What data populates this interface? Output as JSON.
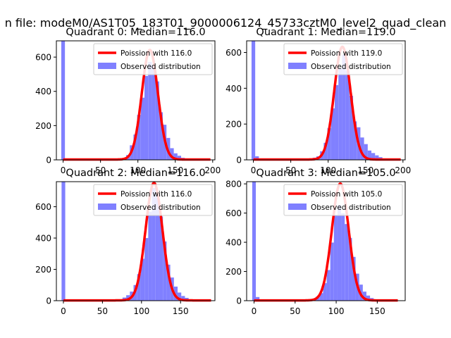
{
  "figure": {
    "suptitle": "n file: modeM0/AS1T05_183T01_9000006124_45733cztM0_level2_quad_clean"
  },
  "chart_data": [
    {
      "type": "bar",
      "title": "Quadrant 0: Median=116.0",
      "xlim": [
        -9,
        203
      ],
      "ylim": [
        0,
        695
      ],
      "xticks": [
        0,
        50,
        100,
        150,
        200
      ],
      "yticks": [
        0,
        200,
        400,
        600
      ],
      "grid": false,
      "legend_position": "top-right",
      "median": 116,
      "series": [
        {
          "name": "Observed distribution",
          "kind": "histogram",
          "color": "#8080ff",
          "bin_width": 4.9,
          "zero_bin": 695,
          "bins": [
            [
              79.4,
              10
            ],
            [
              84.3,
              28
            ],
            [
              89.2,
              85
            ],
            [
              94.1,
              148
            ],
            [
              99.0,
              263
            ],
            [
              103.9,
              363
            ],
            [
              108.8,
              490
            ],
            [
              113.7,
              572
            ],
            [
              118.6,
              555
            ],
            [
              123.5,
              458
            ],
            [
              128.4,
              278
            ],
            [
              133.3,
              205
            ],
            [
              138.2,
              128
            ],
            [
              143.1,
              68
            ],
            [
              148.0,
              38
            ],
            [
              152.9,
              24
            ],
            [
              157.8,
              12
            ],
            [
              162.7,
              6
            ]
          ]
        },
        {
          "name": "Poission with 116.0",
          "kind": "line",
          "color": "#ff0000",
          "mean": 116.0,
          "peak": 640,
          "x_range": [
            0,
            197
          ]
        }
      ]
    },
    {
      "type": "bar",
      "title": "Quadrant 1: Median=119.0",
      "xlim": [
        -9,
        203
      ],
      "ylim": [
        0,
        665
      ],
      "xticks": [
        0,
        50,
        100,
        150,
        200
      ],
      "yticks": [
        0,
        200,
        400,
        600
      ],
      "grid": false,
      "legend_position": "top-right",
      "median": 119,
      "series": [
        {
          "name": "Observed distribution",
          "kind": "histogram",
          "color": "#8080ff",
          "bin_width": 4.9,
          "zero_bin": 665,
          "zero_bin2": 20,
          "bins": [
            [
              74.5,
              5
            ],
            [
              79.4,
              12
            ],
            [
              84.3,
              20
            ],
            [
              89.2,
              48
            ],
            [
              94.1,
              95
            ],
            [
              99.0,
              178
            ],
            [
              103.9,
              288
            ],
            [
              108.8,
              418
            ],
            [
              113.7,
              512
            ],
            [
              118.6,
              588
            ],
            [
              123.5,
              498
            ],
            [
              128.4,
              358
            ],
            [
              133.3,
              215
            ],
            [
              138.2,
              182
            ],
            [
              143.1,
              125
            ],
            [
              148.0,
              88
            ],
            [
              152.9,
              52
            ],
            [
              157.8,
              38
            ],
            [
              162.7,
              25
            ],
            [
              167.6,
              15
            ],
            [
              172.5,
              6
            ]
          ]
        },
        {
          "name": "Poission with 119.0",
          "kind": "line",
          "color": "#ff0000",
          "mean": 119.0,
          "peak": 630,
          "x_range": [
            0,
            197
          ]
        }
      ]
    },
    {
      "type": "bar",
      "title": "Quadrant 2: Median=116.0",
      "xlim": [
        -9,
        194
      ],
      "ylim": [
        0,
        760
      ],
      "xticks": [
        0,
        50,
        100,
        150
      ],
      "yticks": [
        0,
        200,
        400,
        600
      ],
      "grid": false,
      "legend_position": "top-right",
      "median": 116,
      "series": [
        {
          "name": "Observed distribution",
          "kind": "histogram",
          "color": "#8080ff",
          "bin_width": 4.7,
          "zero_bin": 760,
          "bins": [
            [
              71.0,
              8
            ],
            [
              75.7,
              20
            ],
            [
              80.4,
              35
            ],
            [
              85.1,
              58
            ],
            [
              89.8,
              100
            ],
            [
              94.5,
              170
            ],
            [
              99.2,
              268
            ],
            [
              103.9,
              400
            ],
            [
              108.6,
              568
            ],
            [
              113.3,
              720
            ],
            [
              118.0,
              680
            ],
            [
              122.7,
              538
            ],
            [
              127.4,
              378
            ],
            [
              132.1,
              230
            ],
            [
              136.8,
              148
            ],
            [
              141.5,
              90
            ],
            [
              146.2,
              52
            ],
            [
              150.9,
              30
            ],
            [
              155.6,
              18
            ],
            [
              160.3,
              8
            ]
          ]
        },
        {
          "name": "Poission with 116.0",
          "kind": "line",
          "color": "#ff0000",
          "mean": 116.0,
          "peak": 750,
          "x_range": [
            0,
            189
          ]
        }
      ]
    },
    {
      "type": "bar",
      "title": "Quadrant 3: Median=105.0",
      "xlim": [
        -9,
        184
      ],
      "ylim": [
        0,
        815
      ],
      "xticks": [
        0,
        50,
        100,
        150
      ],
      "yticks": [
        0,
        200,
        400,
        600,
        800
      ],
      "grid": false,
      "legend_position": "top-right",
      "median": 105,
      "series": [
        {
          "name": "Observed distribution",
          "kind": "histogram",
          "color": "#8080ff",
          "bin_width": 4.4,
          "zero_bin": 815,
          "zero_bin2": 25,
          "bins": [
            [
              66.4,
              5
            ],
            [
              70.8,
              12
            ],
            [
              75.2,
              28
            ],
            [
              79.6,
              52
            ],
            [
              84.0,
              120
            ],
            [
              88.4,
              210
            ],
            [
              92.8,
              398
            ],
            [
              97.2,
              588
            ],
            [
              101.6,
              655
            ],
            [
              106.0,
              598
            ],
            [
              110.4,
              525
            ],
            [
              114.8,
              430
            ],
            [
              119.2,
              300
            ],
            [
              123.6,
              185
            ],
            [
              128.0,
              110
            ],
            [
              132.4,
              62
            ],
            [
              136.8,
              35
            ],
            [
              141.2,
              18
            ],
            [
              145.6,
              8
            ]
          ]
        },
        {
          "name": "Poission with 105.0",
          "kind": "line",
          "color": "#ff0000",
          "mean": 105.0,
          "peak": 800,
          "x_range": [
            0,
            175
          ]
        }
      ]
    }
  ]
}
